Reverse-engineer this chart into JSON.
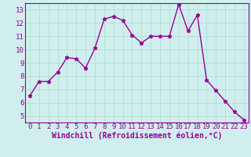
{
  "x": [
    0,
    1,
    2,
    3,
    4,
    5,
    6,
    7,
    8,
    9,
    10,
    11,
    12,
    13,
    14,
    15,
    16,
    17,
    18,
    19,
    20,
    21,
    22,
    23
  ],
  "y": [
    6.5,
    7.6,
    7.6,
    8.3,
    9.4,
    9.3,
    8.6,
    10.1,
    12.3,
    12.5,
    12.2,
    11.1,
    10.5,
    11.0,
    11.0,
    11.0,
    13.4,
    11.4,
    12.6,
    7.7,
    6.9,
    6.1,
    5.3,
    4.7
  ],
  "line_color": "#990099",
  "marker": "*",
  "marker_size": 3.5,
  "bg_color": "#d0eeee",
  "grid_color": "#aaddcc",
  "xlabel": "Windchill (Refroidissement éolien,°C)",
  "xlim": [
    -0.5,
    23.5
  ],
  "ylim": [
    4.5,
    13.5
  ],
  "yticks": [
    5,
    6,
    7,
    8,
    9,
    10,
    11,
    12,
    13
  ],
  "xticks": [
    0,
    1,
    2,
    3,
    4,
    5,
    6,
    7,
    8,
    9,
    10,
    11,
    12,
    13,
    14,
    15,
    16,
    17,
    18,
    19,
    20,
    21,
    22,
    23
  ],
  "tick_label_size": 6.5,
  "xlabel_size": 7.0,
  "line_width": 1.0
}
